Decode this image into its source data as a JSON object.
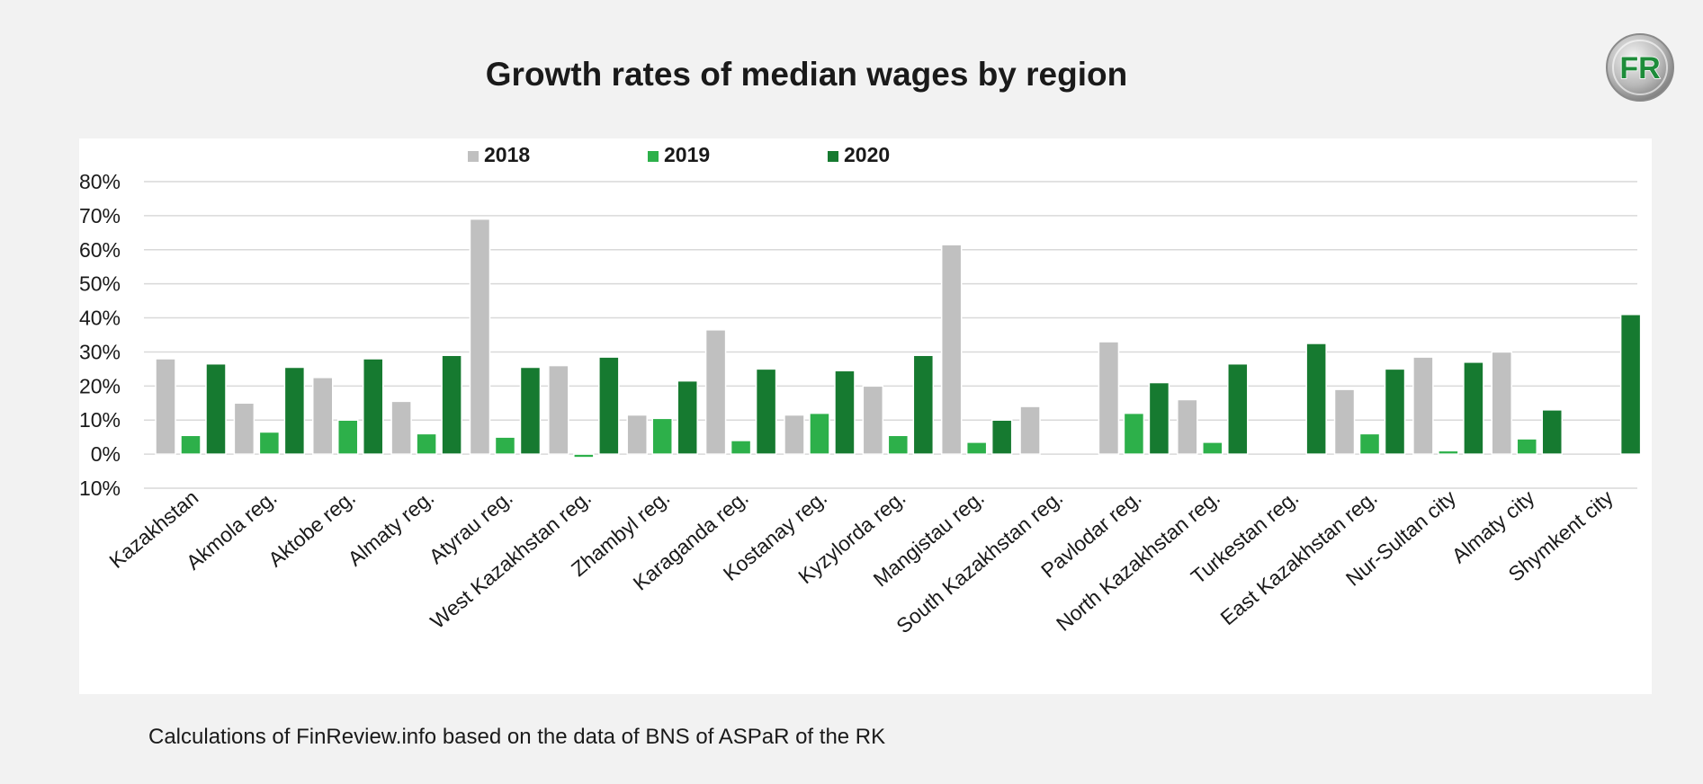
{
  "header": {
    "title": "Growth rates of median wages by region",
    "logo_text": "FR"
  },
  "footer": {
    "source": "Calculations of FinReview.info based on the data of BNS of ASPaR of the RK"
  },
  "colors": {
    "background": "#f2f2f2",
    "panel": "#ffffff",
    "grid": "#d9d9d9",
    "text": "#1a1a1a"
  },
  "chart_data": {
    "type": "bar",
    "title": "Growth rates of median wages by region",
    "xlabel": "",
    "ylabel": "",
    "ylim": [
      -10,
      80
    ],
    "yticks": [
      -10,
      0,
      10,
      20,
      30,
      40,
      50,
      60,
      70,
      80
    ],
    "ytick_labels": [
      "-10%",
      "0%",
      "10%",
      "20%",
      "30%",
      "40%",
      "50%",
      "60%",
      "70%",
      "80%"
    ],
    "grid": true,
    "legend_position": "top-center",
    "categories": [
      "Kazakhstan",
      "Akmola reg.",
      "Aktobe reg.",
      "Almaty reg.",
      "Atyrau reg.",
      "West Kazakhstan reg.",
      "Zhambyl  reg.",
      "Karaganda reg.",
      "Kostanay reg.",
      "Kyzylorda reg.",
      "Mangistau reg.",
      "South Kazakhstan reg.",
      "Pavlodar reg.",
      "North Kazakhstan reg.",
      "Turkestan reg.",
      "East Kazakhstan reg.",
      "Nur-Sultan city",
      "Almaty city",
      "Shymkent city"
    ],
    "series": [
      {
        "name": "2018",
        "color": "#c0c0c0",
        "values": [
          28,
          15,
          22.5,
          15.5,
          69,
          26,
          11.5,
          36.5,
          11.5,
          20,
          61.5,
          14,
          33,
          16,
          null,
          19,
          28.5,
          30,
          null
        ]
      },
      {
        "name": "2019",
        "color": "#2db04a",
        "values": [
          5.5,
          6.5,
          10,
          6,
          5,
          -1,
          10.5,
          4,
          12,
          5.5,
          3.5,
          null,
          12,
          3.5,
          null,
          6,
          1,
          4.5,
          null
        ]
      },
      {
        "name": "2020",
        "color": "#167a30",
        "values": [
          26.5,
          25.5,
          28,
          29,
          25.5,
          28.5,
          21.5,
          25,
          24.5,
          29,
          10,
          null,
          21,
          26.5,
          32.5,
          25,
          27,
          13,
          41
        ]
      }
    ]
  }
}
